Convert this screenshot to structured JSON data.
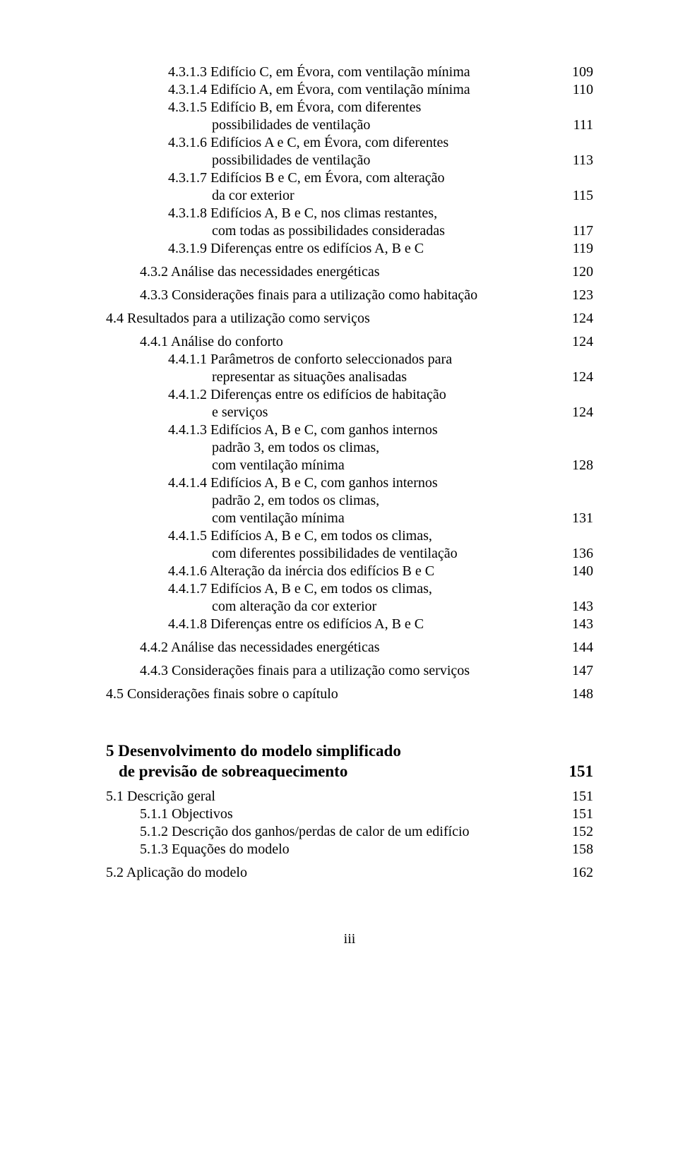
{
  "lines": [
    {
      "type": "row",
      "indent": "indent-2",
      "label": "4.3.1.3 Edifício C, em Évora, com ventilação mínima",
      "page": "109"
    },
    {
      "type": "row",
      "indent": "indent-2",
      "label": "4.3.1.4 Edifício A, em Évora, com ventilação mínima",
      "page": "110"
    },
    {
      "type": "row",
      "indent": "indent-2",
      "label": "4.3.1.5 Edifício B, em Évora, com diferentes",
      "page": ""
    },
    {
      "type": "row",
      "indent": "continuation",
      "label": "possibilidades de ventilação",
      "page": "111"
    },
    {
      "type": "row",
      "indent": "indent-2",
      "label": "4.3.1.6 Edifícios A e C, em Évora, com diferentes",
      "page": ""
    },
    {
      "type": "row",
      "indent": "continuation",
      "label": "possibilidades de ventilação",
      "page": "113"
    },
    {
      "type": "row",
      "indent": "indent-2",
      "label": "4.3.1.7 Edifícios B e C, em Évora, com alteração",
      "page": ""
    },
    {
      "type": "row",
      "indent": "continuation",
      "label": "da cor exterior",
      "page": "115"
    },
    {
      "type": "row",
      "indent": "indent-2",
      "label": "4.3.1.8 Edifícios A, B e C, nos climas restantes,",
      "page": ""
    },
    {
      "type": "row",
      "indent": "continuation",
      "label": "com todas as possibilidades consideradas",
      "page": "117"
    },
    {
      "type": "row",
      "indent": "indent-2",
      "label": "4.3.1.9 Diferenças entre os edifícios A, B e C",
      "page": "119"
    },
    {
      "type": "gap",
      "size": "gap-small"
    },
    {
      "type": "row",
      "indent": "indent-1",
      "label": "4.3.2 Análise das necessidades energéticas",
      "page": "120"
    },
    {
      "type": "gap",
      "size": "gap-small"
    },
    {
      "type": "row",
      "indent": "indent-1",
      "label": "4.3.3 Considerações finais para a utilização como habitação",
      "page": "123"
    },
    {
      "type": "gap",
      "size": "gap-small"
    },
    {
      "type": "row",
      "indent": "",
      "label": "4.4 Resultados para a utilização como serviços",
      "page": "124"
    },
    {
      "type": "gap",
      "size": "gap-small"
    },
    {
      "type": "row",
      "indent": "indent-1",
      "label": "4.4.1 Análise do conforto",
      "page": "124"
    },
    {
      "type": "row",
      "indent": "indent-2",
      "label": "4.4.1.1 Parâmetros de conforto seleccionados para",
      "page": ""
    },
    {
      "type": "row",
      "indent": "continuation",
      "label": "representar as situações analisadas",
      "page": "124"
    },
    {
      "type": "row",
      "indent": "indent-2",
      "label": "4.4.1.2 Diferenças entre os edifícios de habitação",
      "page": ""
    },
    {
      "type": "row",
      "indent": "continuation",
      "label": " e serviços",
      "page": "124"
    },
    {
      "type": "row",
      "indent": "indent-2",
      "label": "4.4.1.3 Edifícios A, B e C, com ganhos internos",
      "page": ""
    },
    {
      "type": "row",
      "indent": "continuation",
      "label": "padrão 3, em todos os climas,",
      "page": ""
    },
    {
      "type": "row",
      "indent": "continuation",
      "label": "com ventilação mínima",
      "page": "128"
    },
    {
      "type": "row",
      "indent": "indent-2",
      "label": "4.4.1.4 Edifícios A, B e C, com ganhos internos",
      "page": ""
    },
    {
      "type": "row",
      "indent": "continuation",
      "label": "padrão 2, em todos os climas,",
      "page": ""
    },
    {
      "type": "row",
      "indent": "continuation",
      "label": "com ventilação mínima",
      "page": "131"
    },
    {
      "type": "row",
      "indent": "indent-2",
      "label": "4.4.1.5 Edifícios A, B e C, em todos os climas,",
      "page": ""
    },
    {
      "type": "row",
      "indent": "continuation",
      "label": "com diferentes possibilidades de ventilação",
      "page": "136"
    },
    {
      "type": "row",
      "indent": "indent-2",
      "label": "4.4.1.6 Alteração da inércia dos edifícios B e C",
      "page": "140"
    },
    {
      "type": "row",
      "indent": "indent-2",
      "label": "4.4.1.7 Edifícios A, B e C, em todos os climas,",
      "page": ""
    },
    {
      "type": "row",
      "indent": "continuation",
      "label": "com alteração da cor exterior",
      "page": "143"
    },
    {
      "type": "row",
      "indent": "indent-2",
      "label": "4.4.1.8 Diferenças entre os edifícios A, B e C",
      "page": "143"
    },
    {
      "type": "gap",
      "size": "gap-small"
    },
    {
      "type": "row",
      "indent": "indent-1",
      "label": "4.4.2 Análise das necessidades energéticas",
      "page": "144"
    },
    {
      "type": "gap",
      "size": "gap-small"
    },
    {
      "type": "row",
      "indent": "indent-1",
      "label": "4.4.3 Considerações finais para a utilização como serviços",
      "page": "147"
    },
    {
      "type": "gap",
      "size": "gap-small"
    },
    {
      "type": "row",
      "indent": "",
      "label": "4.5 Considerações finais sobre o capítulo",
      "page": "148"
    },
    {
      "type": "gap",
      "size": "gap-large"
    },
    {
      "type": "chapter",
      "line1": "5 Desenvolvimento do modelo simplificado",
      "line2": "de previsão de sobreaquecimento",
      "page": "151"
    },
    {
      "type": "gap",
      "size": "gap-small"
    },
    {
      "type": "row",
      "indent": "",
      "label": "5.1 Descrição geral",
      "page": "151"
    },
    {
      "type": "row",
      "indent": "indent-1",
      "label": "5.1.1 Objectivos",
      "page": "151"
    },
    {
      "type": "row",
      "indent": "indent-1",
      "label": "5.1.2 Descrição dos ganhos/perdas de calor de um edifício",
      "page": "152"
    },
    {
      "type": "row",
      "indent": "indent-1",
      "label": "5.1.3 Equações do modelo",
      "page": "158"
    },
    {
      "type": "gap",
      "size": "gap-small"
    },
    {
      "type": "row",
      "indent": "",
      "label": "5.2 Aplicação do modelo",
      "page": "162"
    }
  ],
  "footer": "iii"
}
